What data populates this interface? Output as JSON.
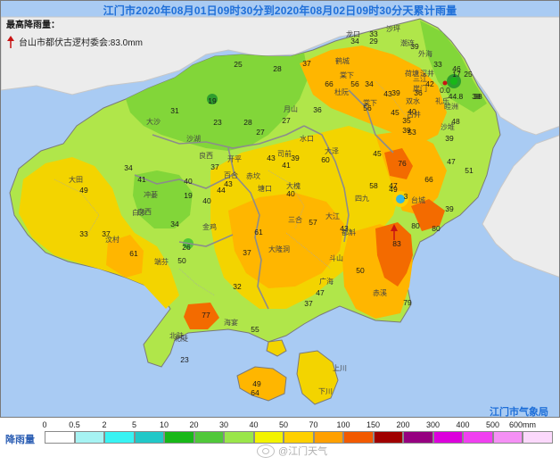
{
  "map": {
    "title": "江门市2020年08月01日09时30分到2020年08月02日09时30分天累计雨量",
    "max_title": "最高降雨量：",
    "max_station": "台山市都伏古逻村委会:83.0mm",
    "agency": "江门市气象局",
    "watermark": "@江门天气",
    "colors": {
      "sea": "#a9cbf3",
      "outside_land": "#ececec",
      "rain_lt10": "#b0e64a",
      "rain_10_25": "#82d639",
      "rain_25_50": "#f3d400",
      "rain_50_70": "#ffb600",
      "rain_70_100": "#f36b00",
      "peak_spot": "#2fb6e6",
      "boundary": "#8c8c8c"
    },
    "values": [
      {
        "v": "33"
      },
      {
        "v": "34"
      },
      {
        "v": "29"
      },
      {
        "v": "39"
      },
      {
        "v": "25"
      },
      {
        "v": "28"
      },
      {
        "v": "37"
      },
      {
        "v": "46"
      },
      {
        "v": "33"
      },
      {
        "v": "17"
      },
      {
        "v": "25"
      },
      {
        "v": "42"
      },
      {
        "v": "31"
      },
      {
        "v": "19"
      },
      {
        "v": "56"
      },
      {
        "v": "66"
      },
      {
        "v": "38"
      },
      {
        "v": "36"
      },
      {
        "v": "39"
      },
      {
        "v": "23"
      },
      {
        "v": "28"
      },
      {
        "v": "27"
      },
      {
        "v": "36"
      },
      {
        "v": "40"
      },
      {
        "v": "45"
      },
      {
        "v": "43"
      },
      {
        "v": "53"
      },
      {
        "v": "56"
      },
      {
        "v": "35"
      },
      {
        "v": "39"
      },
      {
        "v": "27"
      },
      {
        "v": "45"
      },
      {
        "v": "39"
      },
      {
        "v": "43"
      },
      {
        "v": "41"
      },
      {
        "v": "44"
      },
      {
        "v": "60"
      },
      {
        "v": "40"
      },
      {
        "v": "58"
      },
      {
        "v": "76"
      },
      {
        "v": "47"
      },
      {
        "v": "34"
      },
      {
        "v": "37"
      },
      {
        "v": "40"
      },
      {
        "v": "41"
      },
      {
        "v": "40"
      },
      {
        "v": "43"
      },
      {
        "v": "49"
      },
      {
        "v": "66"
      },
      {
        "v": "49"
      },
      {
        "v": "19"
      },
      {
        "v": "34"
      },
      {
        "v": "57"
      },
      {
        "v": "3"
      },
      {
        "v": "80"
      },
      {
        "v": "33"
      },
      {
        "v": "61"
      },
      {
        "v": "43"
      },
      {
        "v": "80"
      },
      {
        "v": "37"
      },
      {
        "v": "26"
      },
      {
        "v": "37"
      },
      {
        "v": "83"
      },
      {
        "v": "61"
      },
      {
        "v": "50"
      },
      {
        "v": "50"
      },
      {
        "v": "32"
      },
      {
        "v": "47"
      },
      {
        "v": "79"
      },
      {
        "v": "77"
      },
      {
        "v": "55"
      },
      {
        "v": "49"
      },
      {
        "v": "64"
      },
      {
        "v": "23"
      },
      {
        "v": "0.0"
      },
      {
        "v": "44.8"
      },
      {
        "v": "38"
      },
      {
        "v": "34"
      },
      {
        "v": "48"
      },
      {
        "v": "39"
      },
      {
        "v": "51"
      },
      {
        "v": "47"
      },
      {
        "v": "39"
      },
      {
        "v": "37"
      }
    ],
    "towns": [
      {
        "name": "龙口"
      },
      {
        "name": "沙坪"
      },
      {
        "name": "鹤城"
      },
      {
        "name": "杜阮"
      },
      {
        "name": "大沙"
      },
      {
        "name": "月山"
      },
      {
        "name": "沙湖"
      },
      {
        "name": "棠下"
      },
      {
        "name": "水口"
      },
      {
        "name": "司前"
      },
      {
        "name": "大泽"
      },
      {
        "name": "良西"
      },
      {
        "name": "开平"
      },
      {
        "name": "百合"
      },
      {
        "name": "赤坎"
      },
      {
        "name": "塘口"
      },
      {
        "name": "大槐"
      },
      {
        "name": "三合"
      },
      {
        "name": "大江"
      },
      {
        "name": "四九"
      },
      {
        "name": "台城"
      },
      {
        "name": "斗山"
      },
      {
        "name": "大隆洞"
      },
      {
        "name": "广海"
      },
      {
        "name": "赤溪"
      },
      {
        "name": "北陡"
      },
      {
        "name": "海宴"
      },
      {
        "name": "深井"
      },
      {
        "name": "冲蒌"
      },
      {
        "name": "白沙"
      },
      {
        "name": "都斛"
      },
      {
        "name": "大田"
      },
      {
        "name": "良西"
      },
      {
        "name": "北陡"
      },
      {
        "name": "金鸡"
      },
      {
        "name": "汶村"
      },
      {
        "name": "端芬"
      },
      {
        "name": "上川"
      },
      {
        "name": "下川"
      },
      {
        "name": "崖门"
      },
      {
        "name": "古井"
      },
      {
        "name": "双水"
      },
      {
        "name": "沙堆"
      },
      {
        "name": "睦洲"
      },
      {
        "name": "三江"
      },
      {
        "name": "礼乐"
      },
      {
        "name": "外海"
      },
      {
        "name": "潮连"
      },
      {
        "name": "棠下"
      },
      {
        "name": "荷塘"
      }
    ]
  },
  "legend": {
    "label": "降雨量",
    "ticks": [
      "0",
      "0.5",
      "2",
      "5",
      "10",
      "20",
      "30",
      "40",
      "50",
      "70",
      "100",
      "150",
      "200",
      "300",
      "400",
      "500",
      "600mm"
    ],
    "colors": [
      "#ffffff",
      "#a6f3f3",
      "#38f3f3",
      "#21c8c8",
      "#18b818",
      "#50c83a",
      "#9ae64a",
      "#f3f300",
      "#ffd000",
      "#ffa000",
      "#f25a00",
      "#a00000",
      "#960080",
      "#dc00dc",
      "#f040f0",
      "#f590f5",
      "#fbd8fb"
    ]
  }
}
